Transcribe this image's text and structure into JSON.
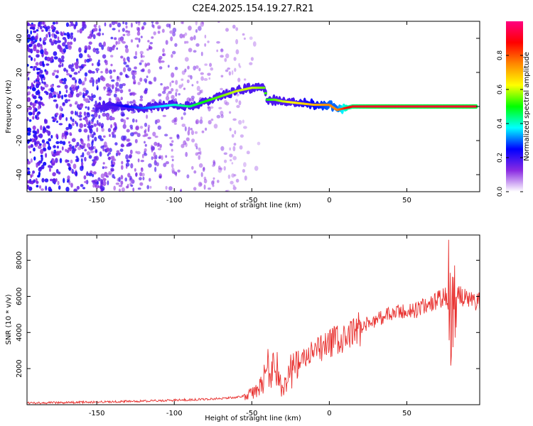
{
  "title": "C2E4.2025.154.19.27.R21",
  "colors": {
    "noise": "#8a2be2",
    "signal_low": "#3355ff",
    "signal_mid": "#00e0a0",
    "signal_high": "#ff2020",
    "snr_line": "#e8312f"
  },
  "chart_data": [
    {
      "type": "heatmap",
      "xlabel": "Height of straight line (km)",
      "ylabel": "Frequency (Hz)",
      "xlim": [
        -195,
        97
      ],
      "ylim": [
        -50,
        50
      ],
      "xticks": [
        -150,
        -100,
        -50,
        0,
        50
      ],
      "yticks": [
        -40,
        -20,
        0,
        20,
        40
      ],
      "colorbar": {
        "label": "Normalized spectral amplitude",
        "range": [
          0,
          1
        ],
        "ticks": [
          0.0,
          0.2,
          0.4,
          0.6,
          0.8
        ],
        "colors": [
          "#ffffff",
          "#8a2be2",
          "#0000ff",
          "#00ffff",
          "#00ff00",
          "#ffff00",
          "#ff8800",
          "#ff0000",
          "#ff0080"
        ]
      },
      "signal_track": {
        "x": [
          -150,
          -140,
          -130,
          -120,
          -110,
          -100,
          -90,
          -80,
          -70,
          -60,
          -50,
          -42,
          -40,
          -35,
          -30,
          -20,
          -10,
          0,
          5,
          10,
          15,
          30,
          50,
          70,
          95
        ],
        "freq": [
          0,
          1,
          0,
          -1,
          0,
          1,
          0,
          3,
          6,
          9,
          11,
          11,
          4,
          4,
          3,
          2,
          1,
          1,
          -2,
          -1,
          0,
          0,
          0,
          0,
          0
        ],
        "amplitude": [
          0.15,
          0.2,
          0.25,
          0.3,
          0.35,
          0.4,
          0.45,
          0.5,
          0.55,
          0.6,
          0.6,
          0.55,
          0.5,
          0.55,
          0.6,
          0.65,
          0.7,
          0.75,
          0.75,
          0.85,
          0.9,
          0.92,
          0.92,
          0.92,
          0.92
        ]
      }
    },
    {
      "type": "line",
      "xlabel": "Height of straight line (km)",
      "ylabel": "SNR (10 * v/v)",
      "xlim": [
        -195,
        97
      ],
      "ylim": [
        0,
        9400
      ],
      "xticks": [
        -150,
        -100,
        -50,
        0,
        50
      ],
      "yticks": [
        2000,
        4000,
        6000,
        8000
      ],
      "series": [
        {
          "x": [
            -195,
            -170,
            -150,
            -120,
            -100,
            -80,
            -60,
            -50,
            -45,
            -42,
            -40,
            -38,
            -35,
            -32,
            -30,
            -28,
            -25,
            -20,
            -15,
            -10,
            -5,
            0,
            5,
            10,
            15,
            20,
            25,
            30,
            35,
            40,
            45,
            50,
            55,
            60,
            65,
            70,
            75,
            78,
            80,
            82,
            85,
            90,
            97
          ],
          "y": [
            100,
            120,
            150,
            200,
            250,
            300,
            400,
            600,
            900,
            1500,
            2200,
            1700,
            2500,
            1200,
            700,
            1500,
            1900,
            2200,
            2600,
            2900,
            3100,
            3400,
            3600,
            3500,
            3900,
            4300,
            4500,
            4700,
            4900,
            5000,
            5100,
            5200,
            5200,
            5400,
            5600,
            5800,
            6000,
            5500,
            5000,
            6200,
            6000,
            5800,
            5700
          ]
        }
      ]
    }
  ]
}
